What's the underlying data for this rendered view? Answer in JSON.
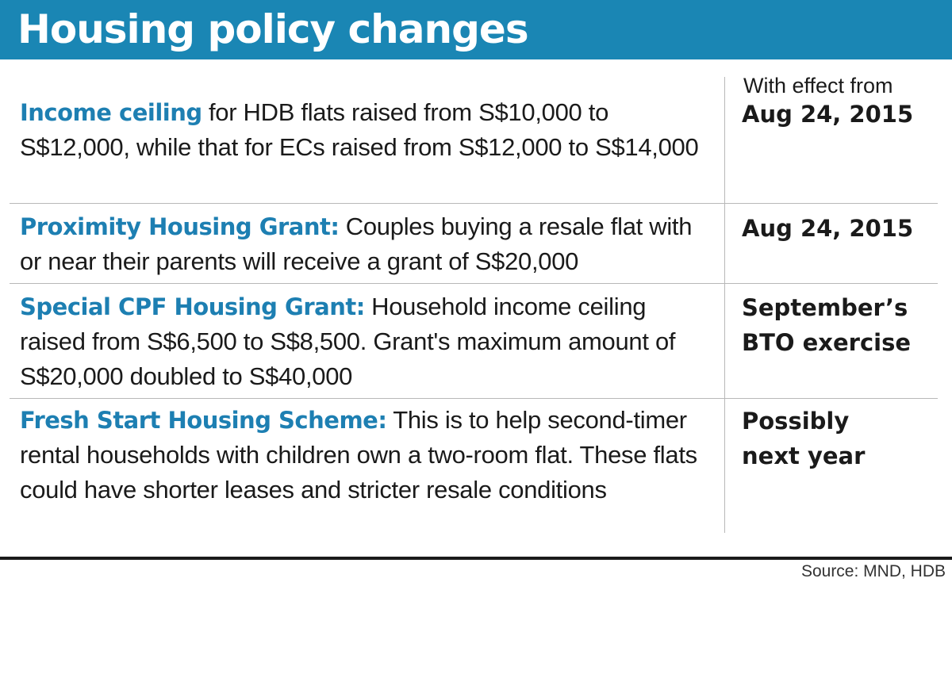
{
  "title": "Housing policy changes",
  "column_header": "With effect from",
  "rows": [
    {
      "term": "Income ceiling",
      "description": " for HDB flats raised from S$10,000 to S$12,000, while that for ECs raised from S$12,000 to S$14,000",
      "effective": "Aug 24, 2015"
    },
    {
      "term": "Proximity Housing Grant:",
      "description": " Couples buying a resale flat with or near their parents will receive a grant of S$20,000",
      "effective": "Aug 24, 2015"
    },
    {
      "term": "Special CPF Housing Grant:",
      "description": " Household income ceiling raised from S$6,500 to S$8,500. Grant's maximum amount of S$20,000 doubled to S$40,000",
      "effective": "September’s BTO exercise"
    },
    {
      "term": "Fresh Start Housing Scheme:",
      "description": " This is to help second-timer rental households with children own a two-room flat. These flats could have shorter leases and stricter resale conditions",
      "effective": "Possibly next year"
    }
  ],
  "source": "Source: MND, HDB",
  "colors": {
    "header_bg": "#1a86b4",
    "accent_text": "#1d7fb2",
    "body_text": "#1a1a1a",
    "rule": "#1a1a1a"
  }
}
